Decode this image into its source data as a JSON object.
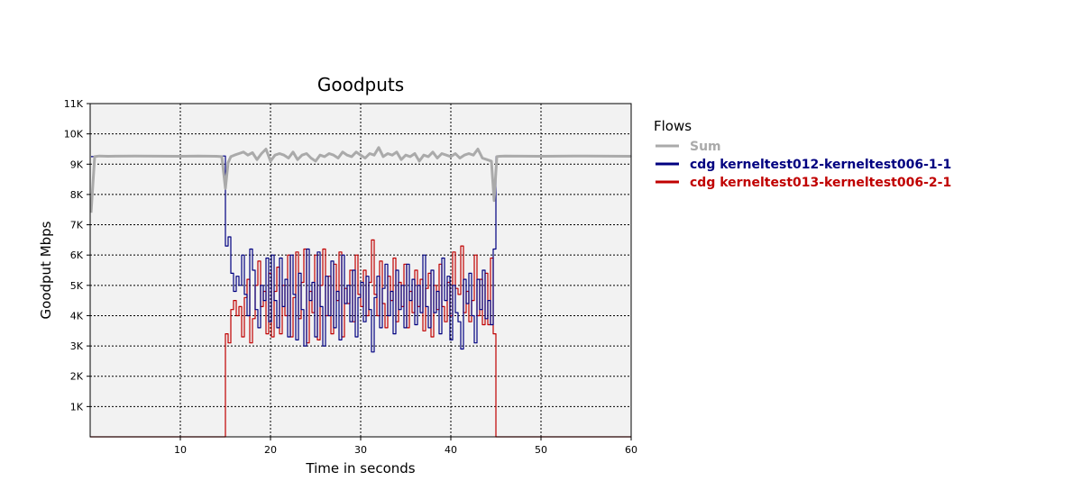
{
  "chart_data": {
    "type": "line",
    "title": "Goodputs",
    "xlabel": "Time in seconds",
    "ylabel": "Goodput Mbps",
    "xlim": [
      0,
      60
    ],
    "ylim": [
      0,
      11000
    ],
    "xticks": [
      {
        "value": 10,
        "label": "10"
      },
      {
        "value": 20,
        "label": "20"
      },
      {
        "value": 30,
        "label": "30"
      },
      {
        "value": 40,
        "label": "40"
      },
      {
        "value": 50,
        "label": "50"
      },
      {
        "value": 60,
        "label": "60"
      }
    ],
    "yticks": [
      {
        "value": 1000,
        "label": "1K"
      },
      {
        "value": 2000,
        "label": "2K"
      },
      {
        "value": 3000,
        "label": "3K"
      },
      {
        "value": 4000,
        "label": "4K"
      },
      {
        "value": 5000,
        "label": "5K"
      },
      {
        "value": 6000,
        "label": "6K"
      },
      {
        "value": 7000,
        "label": "7K"
      },
      {
        "value": 8000,
        "label": "8K"
      },
      {
        "value": 9000,
        "label": "9K"
      },
      {
        "value": 10000,
        "label": "10K"
      },
      {
        "value": 11000,
        "label": "11K"
      }
    ],
    "grid": true,
    "legend_title": "Flows",
    "legend_position": "right",
    "series": [
      {
        "name": "Sum",
        "color": "#aaaaaa",
        "x": [
          0.1,
          0.5,
          1.0,
          2,
          5,
          10,
          12,
          14,
          14.6,
          15.0,
          15.3,
          15.6,
          16,
          16.5,
          17,
          17.5,
          18,
          18.5,
          19,
          19.5,
          20,
          20.5,
          21,
          21.5,
          22,
          22.5,
          23,
          23.5,
          24,
          24.5,
          25,
          25.5,
          26,
          26.5,
          27,
          27.5,
          28,
          28.5,
          29,
          29.5,
          30,
          30.5,
          31,
          31.5,
          32,
          32.5,
          33,
          33.5,
          34,
          34.5,
          35,
          35.5,
          36,
          36.5,
          37,
          37.5,
          38,
          38.5,
          39,
          39.5,
          40,
          40.5,
          41,
          41.5,
          42,
          42.5,
          43,
          43.5,
          44,
          44.5,
          44.8,
          45.1,
          45.4,
          46,
          50,
          55,
          60
        ],
        "y": [
          7400,
          9250,
          9270,
          9260,
          9270,
          9260,
          9270,
          9260,
          9250,
          8200,
          9050,
          9250,
          9300,
          9350,
          9400,
          9300,
          9380,
          9150,
          9350,
          9500,
          9100,
          9300,
          9350,
          9300,
          9200,
          9400,
          9150,
          9300,
          9350,
          9200,
          9100,
          9300,
          9250,
          9350,
          9300,
          9200,
          9400,
          9300,
          9250,
          9400,
          9300,
          9200,
          9350,
          9300,
          9550,
          9250,
          9350,
          9300,
          9400,
          9150,
          9300,
          9250,
          9350,
          9100,
          9300,
          9250,
          9400,
          9200,
          9350,
          9300,
          9250,
          9350,
          9200,
          9300,
          9350,
          9300,
          9500,
          9200,
          9150,
          9100,
          7800,
          9250,
          9260,
          9270,
          9260,
          9270,
          9260
        ]
      },
      {
        "name": "cdg kerneltest012-kerneltest006-1-1",
        "color": "#000080",
        "x": [
          0.1,
          0.6,
          1,
          5,
          10,
          14.7,
          15.0,
          15.3,
          15.6,
          15.9,
          16.2,
          16.5,
          16.8,
          17.1,
          17.4,
          17.7,
          18.0,
          18.3,
          18.6,
          18.9,
          19.2,
          19.5,
          19.8,
          20.1,
          20.4,
          20.7,
          21.0,
          21.3,
          21.6,
          21.9,
          22.2,
          22.5,
          22.8,
          23.1,
          23.4,
          23.7,
          24.0,
          24.3,
          24.6,
          24.9,
          25.2,
          25.5,
          25.8,
          26.1,
          26.4,
          26.7,
          27.0,
          27.3,
          27.6,
          27.9,
          28.2,
          28.5,
          28.8,
          29.1,
          29.4,
          29.7,
          30.0,
          30.3,
          30.6,
          30.9,
          31.2,
          31.5,
          31.8,
          32.1,
          32.4,
          32.7,
          33.0,
          33.3,
          33.6,
          33.9,
          34.2,
          34.5,
          34.8,
          35.1,
          35.4,
          35.7,
          36.0,
          36.3,
          36.6,
          36.9,
          37.2,
          37.5,
          37.8,
          38.1,
          38.4,
          38.7,
          39.0,
          39.3,
          39.6,
          39.9,
          40.2,
          40.5,
          40.8,
          41.1,
          41.4,
          41.7,
          42.0,
          42.3,
          42.6,
          42.9,
          43.2,
          43.5,
          43.8,
          44.1,
          44.4,
          44.7,
          45.0,
          45.3,
          50,
          55,
          60
        ],
        "y": [
          9250,
          9270,
          9260,
          9270,
          9260,
          9270,
          6300,
          6600,
          5400,
          4800,
          5300,
          5000,
          6000,
          4700,
          4000,
          6200,
          5500,
          4200,
          3600,
          5000,
          4500,
          5900,
          3800,
          6000,
          4500,
          3600,
          5900,
          4300,
          5200,
          3300,
          6000,
          4700,
          3200,
          5400,
          4200,
          3000,
          6200,
          4500,
          5100,
          3300,
          6100,
          4300,
          3000,
          5300,
          4000,
          5800,
          3600,
          4800,
          3200,
          6000,
          4400,
          5000,
          3800,
          5500,
          3300,
          4600,
          5100,
          3800,
          5300,
          4200,
          2800,
          4600,
          5300,
          3600,
          4900,
          5700,
          4000,
          4800,
          3400,
          5500,
          4200,
          5000,
          3600,
          5700,
          4500,
          5200,
          3700,
          5000,
          4100,
          6000,
          4300,
          3600,
          5500,
          4100,
          4800,
          3400,
          5900,
          4500,
          5300,
          3200,
          5000,
          4100,
          3800,
          2900,
          5200,
          4400,
          5400,
          4000,
          3100,
          5200,
          4200,
          5500,
          3900,
          4500,
          3700,
          6200,
          9250,
          9260,
          9270,
          9260,
          9270
        ]
      },
      {
        "name": "cdg kerneltest013-kerneltest006-2-1",
        "color": "#c00000",
        "x": [
          0,
          14.9,
          15.0,
          15.3,
          15.6,
          15.9,
          16.2,
          16.5,
          16.8,
          17.1,
          17.4,
          17.7,
          18.0,
          18.3,
          18.6,
          18.9,
          19.2,
          19.5,
          19.8,
          20.1,
          20.4,
          20.7,
          21.0,
          21.3,
          21.6,
          21.9,
          22.2,
          22.5,
          22.8,
          23.1,
          23.4,
          23.7,
          24.0,
          24.3,
          24.6,
          24.9,
          25.2,
          25.5,
          25.8,
          26.1,
          26.4,
          26.7,
          27.0,
          27.3,
          27.6,
          27.9,
          28.2,
          28.5,
          28.8,
          29.1,
          29.4,
          29.7,
          30.0,
          30.3,
          30.6,
          30.9,
          31.2,
          31.5,
          31.8,
          32.1,
          32.4,
          32.7,
          33.0,
          33.3,
          33.6,
          33.9,
          34.2,
          34.5,
          34.8,
          35.1,
          35.4,
          35.7,
          36.0,
          36.3,
          36.6,
          36.9,
          37.2,
          37.5,
          37.8,
          38.1,
          38.4,
          38.7,
          39.0,
          39.3,
          39.6,
          39.9,
          40.2,
          40.5,
          40.8,
          41.1,
          41.4,
          41.7,
          42.0,
          42.3,
          42.6,
          42.9,
          43.2,
          43.5,
          43.8,
          44.1,
          44.4,
          44.7,
          45.0,
          45.3,
          50,
          60
        ],
        "y": [
          0,
          0,
          3400,
          3100,
          4200,
          4500,
          4000,
          4300,
          3300,
          4600,
          5200,
          3100,
          3900,
          5000,
          5800,
          4300,
          4800,
          3400,
          5400,
          3300,
          4800,
          5600,
          3400,
          5000,
          4000,
          6000,
          3300,
          4600,
          6100,
          3900,
          5100,
          6200,
          3100,
          4800,
          4100,
          6000,
          3200,
          5000,
          6200,
          4000,
          5300,
          3400,
          5700,
          4500,
          6100,
          3300,
          4900,
          4400,
          5500,
          3800,
          6000,
          4700,
          4300,
          5500,
          4000,
          5100,
          6500,
          4700,
          4000,
          5800,
          4400,
          3600,
          5300,
          4500,
          5900,
          3800,
          5100,
          4300,
          5700,
          3600,
          4800,
          4100,
          5500,
          4300,
          5200,
          3500,
          4900,
          5400,
          3300,
          5000,
          4200,
          5700,
          4300,
          3800,
          5100,
          4000,
          6100,
          4900,
          4700,
          6300,
          4100,
          4800,
          3800,
          4500,
          6000,
          4000,
          5200,
          3700,
          5400,
          3700,
          5900,
          3400,
          0,
          0,
          0,
          0
        ]
      }
    ]
  }
}
